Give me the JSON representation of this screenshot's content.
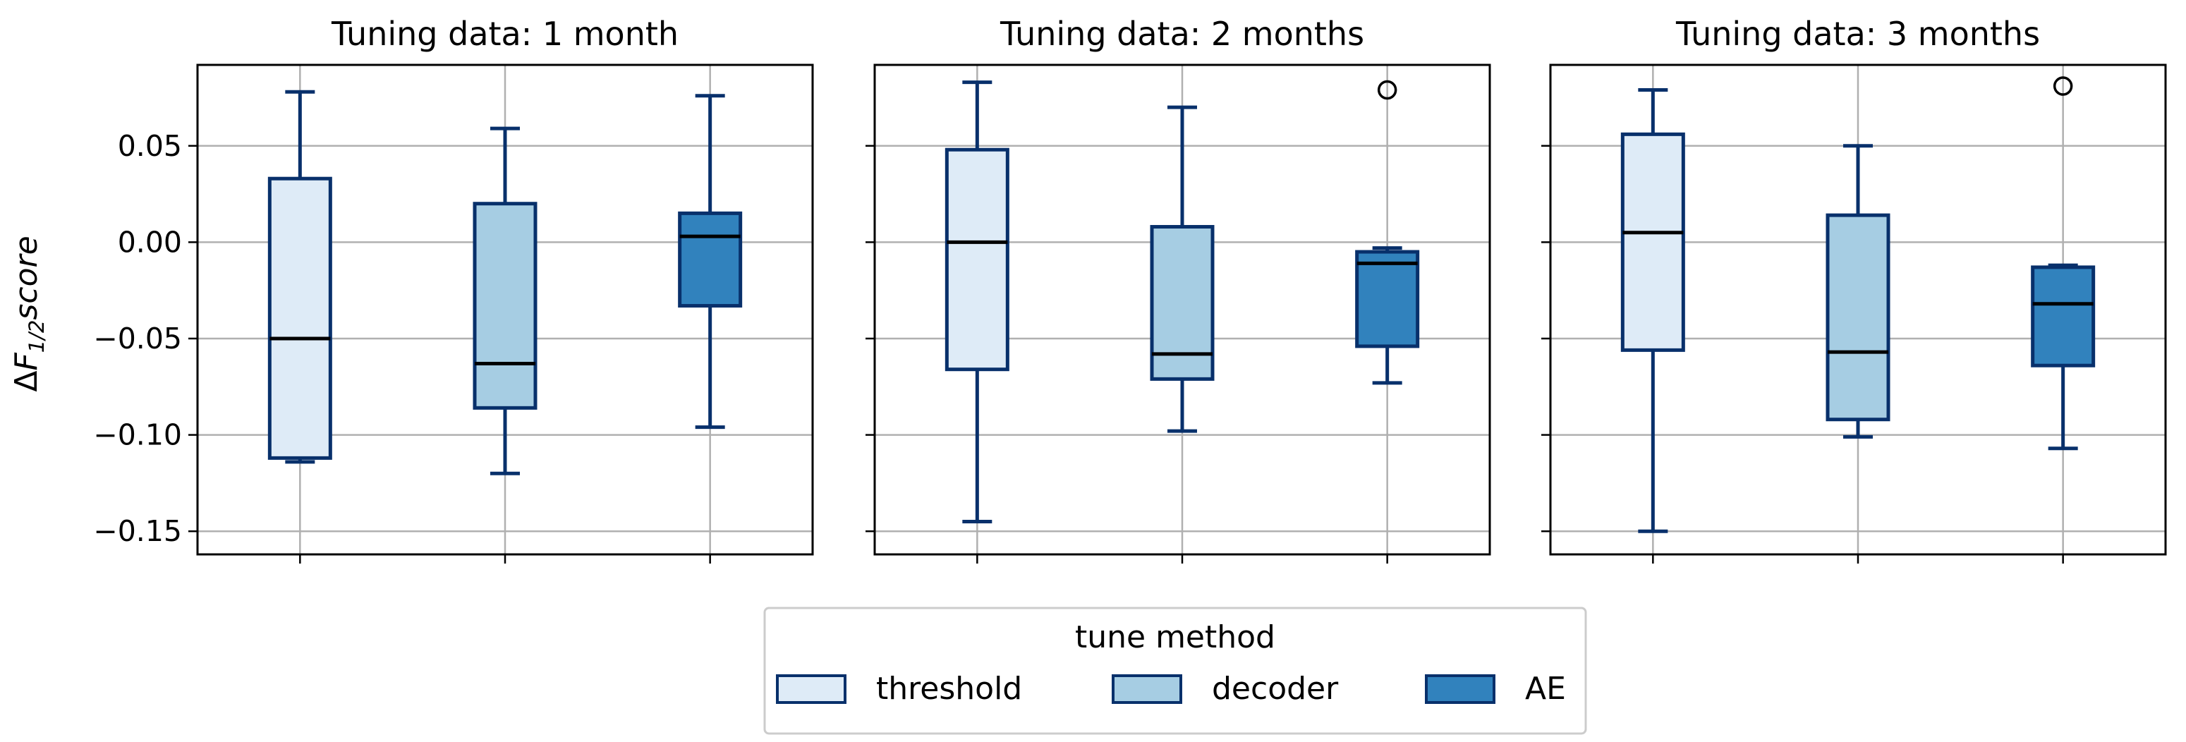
{
  "chart_data": {
    "type": "box",
    "ylabel": "ΔF1/2score",
    "ylabel_parts": {
      "delta": "Δ",
      "f": "F",
      "sub": "1/2",
      "rest": "score"
    },
    "ylim": [
      -0.162,
      0.092
    ],
    "yticks": [
      0.05,
      0.0,
      -0.05,
      -0.1,
      -0.15
    ],
    "ytick_labels": [
      "0.05",
      "0.00",
      "−0.05",
      "−0.10",
      "−0.15"
    ],
    "grid": true,
    "methods": [
      "threshold",
      "decoder",
      "AE"
    ],
    "colors": {
      "threshold": "#deebf7",
      "decoder": "#a6cde3",
      "AE": "#3182bd",
      "edge": "#08306b",
      "median": "#000000"
    },
    "panels": [
      {
        "title": "Tuning data: 1 month",
        "boxes": [
          {
            "method": "threshold",
            "whisker_low": -0.114,
            "q1": -0.112,
            "median": -0.05,
            "q3": 0.033,
            "whisker_high": 0.078,
            "outliers": []
          },
          {
            "method": "decoder",
            "whisker_low": -0.12,
            "q1": -0.086,
            "median": -0.063,
            "q3": 0.02,
            "whisker_high": 0.059,
            "outliers": []
          },
          {
            "method": "AE",
            "whisker_low": -0.096,
            "q1": -0.033,
            "median": 0.003,
            "q3": 0.015,
            "whisker_high": 0.076,
            "outliers": []
          }
        ]
      },
      {
        "title": "Tuning data: 2 months",
        "boxes": [
          {
            "method": "threshold",
            "whisker_low": -0.145,
            "q1": -0.066,
            "median": 0.0,
            "q3": 0.048,
            "whisker_high": 0.083,
            "outliers": []
          },
          {
            "method": "decoder",
            "whisker_low": -0.098,
            "q1": -0.071,
            "median": -0.058,
            "q3": 0.008,
            "whisker_high": 0.07,
            "outliers": []
          },
          {
            "method": "AE",
            "whisker_low": -0.073,
            "q1": -0.054,
            "median": -0.011,
            "q3": -0.005,
            "whisker_high": -0.003,
            "outliers": [
              0.079
            ]
          }
        ]
      },
      {
        "title": "Tuning data: 3 months",
        "boxes": [
          {
            "method": "threshold",
            "whisker_low": -0.15,
            "q1": -0.056,
            "median": 0.005,
            "q3": 0.056,
            "whisker_high": 0.079,
            "outliers": []
          },
          {
            "method": "decoder",
            "whisker_low": -0.101,
            "q1": -0.092,
            "median": -0.057,
            "q3": 0.014,
            "whisker_high": 0.05,
            "outliers": []
          },
          {
            "method": "AE",
            "whisker_low": -0.107,
            "q1": -0.064,
            "median": -0.032,
            "q3": -0.013,
            "whisker_high": -0.012,
            "outliers": [
              0.081
            ]
          }
        ]
      }
    ],
    "legend": {
      "title": "tune method",
      "placement": "bottom-center",
      "entries": [
        "threshold",
        "decoder",
        "AE"
      ]
    }
  }
}
